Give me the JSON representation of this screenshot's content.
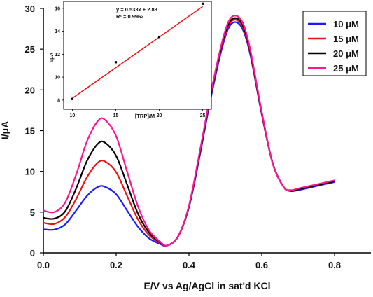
{
  "chart_data": [
    {
      "type": "line",
      "xlabel": "E/V vs Ag/AgCl in sat'd KCl",
      "ylabel": "I/μA",
      "xlim": [
        0.0,
        0.9
      ],
      "ylim": [
        0,
        30
      ],
      "x_ticks": [
        "0.0",
        "0.2",
        "0.4",
        "0.6",
        "0.8"
      ],
      "y_ticks": [
        "0",
        "5",
        "10",
        "15",
        "20",
        "25",
        "30"
      ],
      "grid": false,
      "legend_position": "top-right",
      "series": [
        {
          "name": "10 μM",
          "color": "#1a1aff",
          "x": [
            0.0,
            0.03,
            0.06,
            0.09,
            0.12,
            0.15,
            0.17,
            0.2,
            0.23,
            0.26,
            0.29,
            0.32,
            0.34,
            0.37,
            0.4,
            0.43,
            0.46,
            0.49,
            0.51,
            0.53,
            0.55,
            0.57,
            0.6,
            0.63,
            0.66,
            0.68,
            0.7,
            0.74,
            0.78,
            0.8
          ],
          "y": [
            2.9,
            2.85,
            3.5,
            5.2,
            7.0,
            8.1,
            8.1,
            7.2,
            5.2,
            3.2,
            1.8,
            1.1,
            0.9,
            2.0,
            5.6,
            12.0,
            19.0,
            25.0,
            27.7,
            28.3,
            27.2,
            24.0,
            17.0,
            11.0,
            8.1,
            7.6,
            7.7,
            8.1,
            8.5,
            8.7
          ]
        },
        {
          "name": "15 μM",
          "color": "#ee1111",
          "x": [
            0.0,
            0.03,
            0.06,
            0.09,
            0.12,
            0.15,
            0.17,
            0.2,
            0.23,
            0.26,
            0.29,
            0.32,
            0.34,
            0.37,
            0.4,
            0.43,
            0.46,
            0.49,
            0.51,
            0.53,
            0.55,
            0.57,
            0.6,
            0.63,
            0.66,
            0.68,
            0.7,
            0.74,
            0.78,
            0.8
          ],
          "y": [
            3.7,
            3.55,
            4.4,
            6.6,
            9.3,
            11.1,
            11.2,
            9.9,
            7.0,
            4.1,
            2.2,
            1.2,
            0.9,
            2.0,
            5.7,
            12.2,
            19.3,
            25.3,
            28.0,
            28.6,
            27.5,
            24.2,
            17.1,
            11.0,
            8.1,
            7.6,
            7.8,
            8.2,
            8.6,
            8.8
          ]
        },
        {
          "name": "20 μM",
          "color": "#000000",
          "x": [
            0.0,
            0.03,
            0.06,
            0.09,
            0.12,
            0.15,
            0.17,
            0.2,
            0.23,
            0.26,
            0.29,
            0.32,
            0.34,
            0.37,
            0.4,
            0.43,
            0.46,
            0.49,
            0.51,
            0.53,
            0.55,
            0.57,
            0.6,
            0.63,
            0.66,
            0.68,
            0.7,
            0.74,
            0.78,
            0.8
          ],
          "y": [
            4.3,
            4.2,
            5.1,
            7.9,
            11.3,
            13.4,
            13.5,
            11.9,
            8.4,
            4.8,
            2.5,
            1.3,
            0.9,
            2.0,
            5.7,
            12.3,
            19.4,
            25.5,
            28.2,
            28.8,
            27.7,
            24.4,
            17.2,
            11.0,
            8.1,
            7.6,
            7.8,
            8.2,
            8.6,
            8.8
          ]
        },
        {
          "name": "25 μM",
          "color": "#ff1493",
          "x": [
            0.0,
            0.03,
            0.06,
            0.09,
            0.12,
            0.15,
            0.17,
            0.2,
            0.23,
            0.26,
            0.29,
            0.32,
            0.34,
            0.37,
            0.4,
            0.43,
            0.46,
            0.49,
            0.51,
            0.53,
            0.55,
            0.57,
            0.6,
            0.63,
            0.66,
            0.68,
            0.7,
            0.74,
            0.78,
            0.8
          ],
          "y": [
            5.2,
            5.0,
            6.2,
            9.6,
            13.7,
            16.2,
            16.3,
            14.3,
            10.0,
            5.7,
            2.8,
            1.4,
            0.9,
            2.0,
            5.8,
            12.5,
            19.6,
            25.7,
            28.5,
            29.1,
            28.0,
            24.6,
            17.3,
            11.0,
            8.1,
            7.7,
            7.9,
            8.3,
            8.7,
            8.9
          ]
        }
      ]
    },
    {
      "type": "scatter",
      "xlabel": "[TRP]/M",
      "ylabel": "I/μA",
      "xlim": [
        9,
        26
      ],
      "ylim": [
        7.2,
        16.6
      ],
      "x_ticks": [
        "10",
        "15",
        "20",
        "25"
      ],
      "y_ticks": [
        "8",
        "10",
        "12",
        "14",
        "16"
      ],
      "equation": "y = 0.533x + 2.83",
      "r_squared": "R² = 0.9962",
      "fit": {
        "slope": 0.533,
        "intercept": 2.83,
        "color": "#ee1111"
      },
      "x": [
        10,
        15,
        20,
        25
      ],
      "y": [
        8.1,
        11.3,
        13.5,
        16.4
      ]
    }
  ]
}
